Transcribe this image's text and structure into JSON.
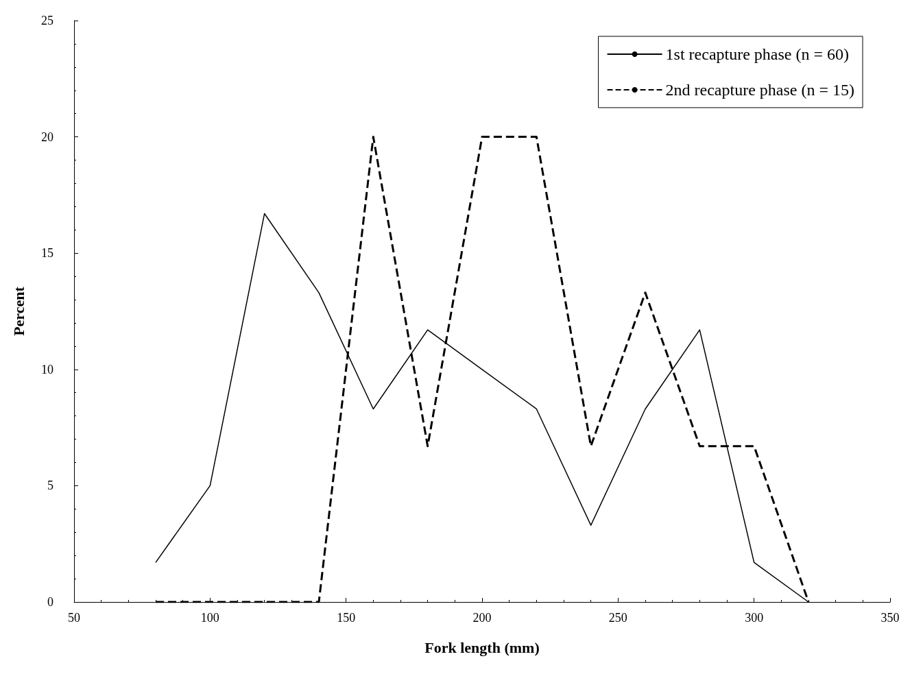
{
  "chart_data": {
    "type": "line",
    "xlabel": "Fork length (mm)",
    "ylabel": "Percent",
    "x": [
      80,
      100,
      120,
      140,
      160,
      180,
      200,
      220,
      240,
      260,
      280,
      300,
      320
    ],
    "series": [
      {
        "name": "1st recapture phase (n = 60)",
        "color": "#000000",
        "line_style": "solid",
        "values": [
          1.7,
          5,
          16.7,
          13.3,
          8.3,
          11.7,
          10,
          8.3,
          3.3,
          8.3,
          11.7,
          1.7,
          0
        ]
      },
      {
        "name": "2nd recapture phase (n = 15)",
        "color": "#000000",
        "line_style": "dashed",
        "values": [
          0,
          0,
          0,
          0,
          20,
          6.7,
          20,
          20,
          6.7,
          13.3,
          6.7,
          6.7,
          0
        ]
      }
    ],
    "xlim": [
      50,
      350
    ],
    "xticks": [
      50,
      100,
      150,
      200,
      250,
      300,
      350
    ],
    "ylim": [
      0,
      25
    ],
    "yticks": [
      0,
      5,
      10,
      15,
      20,
      25
    ],
    "grid": false,
    "legend": "top right",
    "marker": "none"
  }
}
